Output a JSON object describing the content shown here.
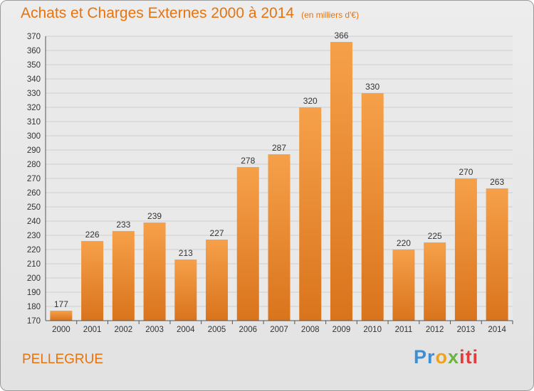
{
  "header": {
    "title": "Achats et Charges Externes 2000 à 2014",
    "unit": "(en milliers d'€)"
  },
  "commune": "PELLEGRUE",
  "logo": {
    "text": "Proxiti",
    "parts": [
      "Pr",
      "o",
      "x",
      "iti"
    ]
  },
  "chart_data": {
    "type": "bar",
    "title": "Achats et Charges Externes 2000 à 2014",
    "categories": [
      "2000",
      "2001",
      "2002",
      "2003",
      "2004",
      "2005",
      "2006",
      "2007",
      "2008",
      "2009",
      "2010",
      "2011",
      "2012",
      "2013",
      "2014"
    ],
    "values": [
      177,
      226,
      233,
      239,
      213,
      227,
      278,
      287,
      320,
      366,
      330,
      220,
      225,
      270,
      263
    ],
    "xlabel": "",
    "ylabel": "",
    "ylim": [
      170,
      370
    ],
    "yticks": [
      170,
      180,
      190,
      200,
      210,
      220,
      230,
      240,
      250,
      260,
      270,
      280,
      290,
      300,
      310,
      320,
      330,
      340,
      350,
      360,
      370
    ],
    "grid": true,
    "bar_color_light": "#f6a04a",
    "bar_color_dark": "#d9741c"
  }
}
